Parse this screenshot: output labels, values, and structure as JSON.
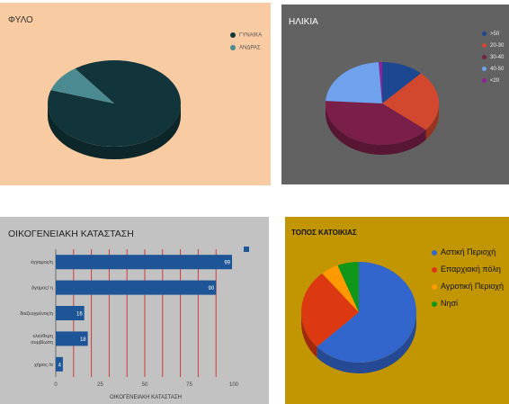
{
  "colors": {
    "panel1_bg": "#f8cba2",
    "panel2_bg": "#626262",
    "panel3_bg": "#c2c2c2",
    "panel4_bg": "#c29603",
    "bar": "#1d5596",
    "gridline": "#d03b3b"
  },
  "chart_data": [
    {
      "type": "pie",
      "title": "ΦΥΛΟ",
      "labels": [
        "ΓΥΝΑΙΚΑ",
        "ΑΝΔΡΑΣ"
      ],
      "values": [
        90,
        10
      ],
      "colors": [
        "#11353a",
        "#4a8a90"
      ],
      "legend": "top-right",
      "style": "3d"
    },
    {
      "type": "pie",
      "title": "ΗΛΙΚΙΑ",
      "labels": [
        ">50",
        "20-30",
        "30-40",
        "40-50",
        "<20"
      ],
      "values": [
        12,
        24,
        40,
        23,
        1
      ],
      "colors": [
        "#1d4791",
        "#d2482e",
        "#7a1f4a",
        "#6fa1ec",
        "#8f1f9a"
      ],
      "legend": "right",
      "style": "3d"
    },
    {
      "type": "bar",
      "orientation": "horizontal",
      "title": "ΟΙΚΟΓΕΝΕΙΑΚΗ ΚΑΤΑΣΤΑΣΗ",
      "categories": [
        "έγγαμος/η",
        "άγαμος/ η",
        "διαζευγμένος/η",
        "ελεύθερη συμβίωση",
        "χήρος /α"
      ],
      "values": [
        99,
        90,
        16,
        18,
        4
      ],
      "xlabel": "ΟΙΚΟΓΕΝΕΙΑΚΗ ΚΑΤΑΣΤΑΣΗ",
      "xticks": [
        0,
        25,
        50,
        75,
        100
      ],
      "xlim": [
        0,
        108
      ],
      "grid": true,
      "legend": "top-right"
    },
    {
      "type": "pie",
      "title": "ΤΟΠΟΣ ΚΑΤΟΙΚΙΑΣ",
      "labels": [
        "Αστική Περιοχή",
        "Επαρχιακή πόλη",
        "Αγροτική Περιοχή",
        "Νησί"
      ],
      "values": [
        63,
        26,
        5,
        6
      ],
      "colors": [
        "#3366cc",
        "#dc3912",
        "#ff9900",
        "#109618"
      ],
      "legend": "right",
      "style": "3d"
    }
  ]
}
